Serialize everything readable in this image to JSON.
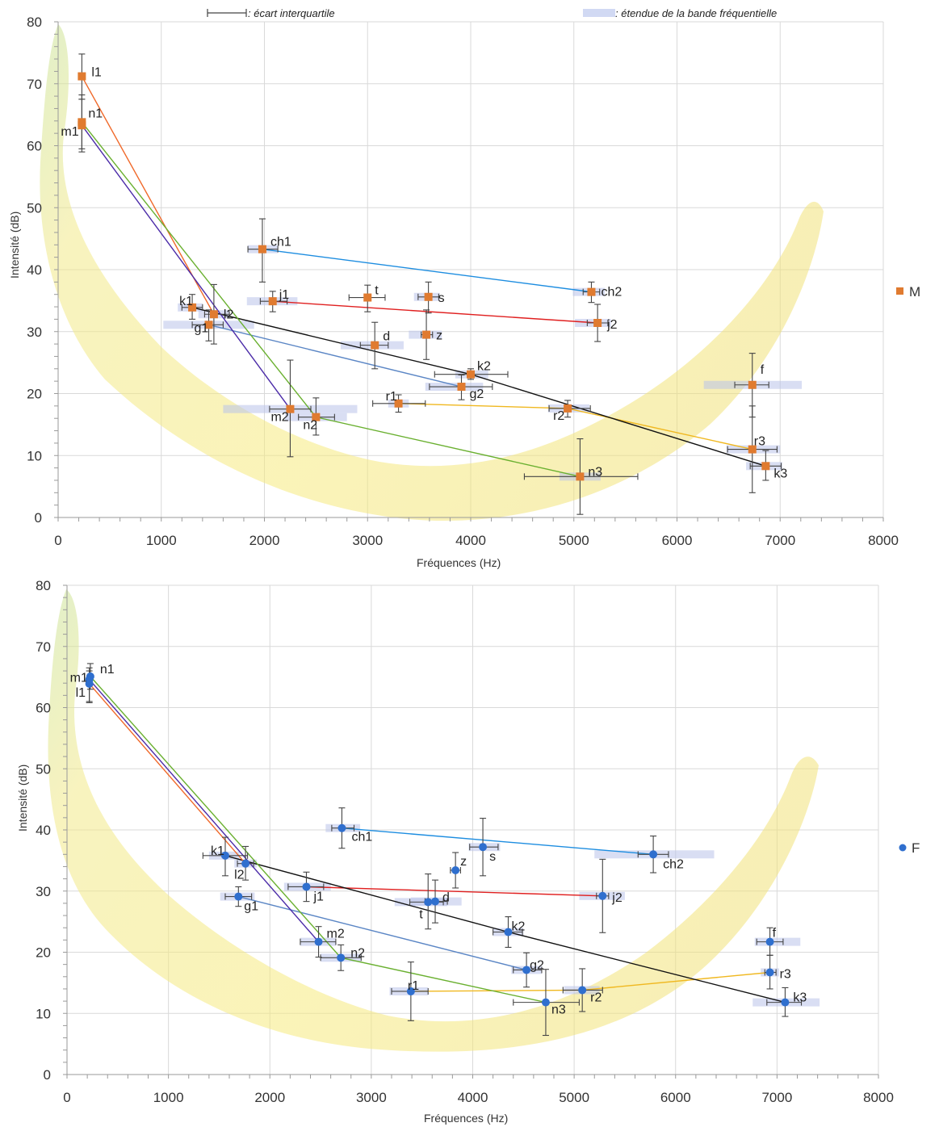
{
  "header_notes": {
    "iqr_note": ": écart interquartile",
    "band_note": ": étendue de la bande fréquentielle"
  },
  "chart_data": [
    {
      "type": "scatter",
      "xlabel": "Fréquences (Hz)",
      "ylabel": "Intensité (dB)",
      "xlim": [
        0,
        8000
      ],
      "ylim": [
        0,
        80
      ],
      "xticks": [
        0,
        1000,
        2000,
        3000,
        4000,
        5000,
        6000,
        7000,
        8000
      ],
      "yticks": [
        0,
        10,
        20,
        30,
        40,
        50,
        60,
        70,
        80
      ],
      "grid": true,
      "legend_position": "right",
      "legend": [
        {
          "name": "M",
          "color": "#e07b30"
        }
      ],
      "marker": "square",
      "marker_color": "#e07b30",
      "points": [
        {
          "label": "l1",
          "x": 230,
          "y": 71.2,
          "yerr": [
            67.5,
            74.8
          ],
          "xerr": null,
          "band": null
        },
        {
          "label": "n1",
          "x": 230,
          "y": 63.8,
          "yerr": [
            59.5,
            68.2
          ],
          "xerr": null,
          "band": null
        },
        {
          "label": "m1",
          "x": 230,
          "y": 63.3,
          "yerr": [
            59.0,
            67.5
          ],
          "xerr": null,
          "band": null
        },
        {
          "label": "ch1",
          "x": 1980,
          "y": 43.3,
          "yerr": [
            38.0,
            48.2
          ],
          "xerr": [
            1840,
            2130
          ],
          "band": [
            1840,
            2130
          ]
        },
        {
          "label": "k1",
          "x": 1300,
          "y": 33.9,
          "yerr": [
            32.0,
            36.0
          ],
          "xerr": [
            1200,
            1400
          ],
          "band": [
            1160,
            1400
          ]
        },
        {
          "label": "l2",
          "x": 1510,
          "y": 32.8,
          "yerr": [
            28.0,
            37.6
          ],
          "xerr": [
            1420,
            1660
          ],
          "band": [
            1360,
            1660
          ]
        },
        {
          "label": "g1",
          "x": 1460,
          "y": 31.1,
          "yerr": [
            28.5,
            33.5
          ],
          "xerr": [
            1300,
            1600
          ],
          "band": [
            1020,
            1900
          ]
        },
        {
          "label": "j1",
          "x": 2080,
          "y": 34.9,
          "yerr": [
            33.2,
            36.5
          ],
          "xerr": [
            1960,
            2220
          ],
          "band": [
            1830,
            2320
          ]
        },
        {
          "label": "t",
          "x": 3000,
          "y": 35.5,
          "yerr": [
            33.2,
            37.5
          ],
          "xerr": [
            2820,
            3170
          ],
          "band": null
        },
        {
          "label": "s",
          "x": 3590,
          "y": 35.6,
          "yerr": [
            33.0,
            38.0
          ],
          "xerr": [
            3490,
            3690
          ],
          "band": [
            3450,
            3700
          ]
        },
        {
          "label": "z",
          "x": 3570,
          "y": 29.5,
          "yerr": [
            25.5,
            33.5
          ],
          "xerr": [
            3520,
            3630
          ],
          "band": [
            3400,
            3720
          ]
        },
        {
          "label": "d",
          "x": 3070,
          "y": 27.8,
          "yerr": [
            24.0,
            31.5
          ],
          "xerr": [
            2930,
            3200
          ],
          "band": [
            2740,
            3350
          ]
        },
        {
          "label": "k2",
          "x": 4000,
          "y": 23.1,
          "yerr": [
            22.3,
            24.0
          ],
          "xerr": [
            3650,
            4360
          ],
          "band": [
            3850,
            4170
          ]
        },
        {
          "label": "g2",
          "x": 3910,
          "y": 21.1,
          "yerr": [
            19.0,
            23.0
          ],
          "xerr": [
            3600,
            4210
          ],
          "band": [
            3560,
            4120
          ]
        },
        {
          "label": "r1",
          "x": 3300,
          "y": 18.4,
          "yerr": [
            17.0,
            19.8
          ],
          "xerr": [
            3050,
            3560
          ],
          "band": [
            3200,
            3400
          ]
        },
        {
          "label": "r2",
          "x": 4940,
          "y": 17.6,
          "yerr": [
            16.2,
            18.9
          ],
          "xerr": [
            4760,
            5160
          ],
          "band": [
            4750,
            5150
          ]
        },
        {
          "label": "m2",
          "x": 2250,
          "y": 17.5,
          "yerr": [
            9.8,
            25.4
          ],
          "xerr": [
            2050,
            2450
          ],
          "band": [
            1600,
            2900
          ]
        },
        {
          "label": "n2",
          "x": 2500,
          "y": 16.2,
          "yerr": [
            13.3,
            19.3
          ],
          "xerr": [
            2330,
            2680
          ],
          "band": [
            2200,
            2800
          ]
        },
        {
          "label": "f",
          "x": 6730,
          "y": 21.4,
          "yerr": [
            16.2,
            26.5
          ],
          "xerr": [
            6560,
            6890
          ],
          "band": [
            6260,
            7210
          ]
        },
        {
          "label": "r3",
          "x": 6730,
          "y": 11.0,
          "yerr": [
            4.0,
            18.0
          ],
          "xerr": [
            6490,
            6970
          ],
          "band": [
            6480,
            7000
          ]
        },
        {
          "label": "k3",
          "x": 6860,
          "y": 8.3,
          "yerr": [
            6.0,
            10.8
          ],
          "xerr": [
            6710,
            7010
          ],
          "band": [
            6670,
            7020
          ]
        },
        {
          "label": "n3",
          "x": 5060,
          "y": 6.6,
          "yerr": [
            0.5,
            12.7
          ],
          "xerr": [
            4520,
            5620
          ],
          "band": [
            4860,
            5260
          ]
        },
        {
          "label": "ch2",
          "x": 5170,
          "y": 36.4,
          "yerr": [
            34.7,
            38.0
          ],
          "xerr": [
            5090,
            5250
          ],
          "band": [
            4990,
            5300
          ]
        },
        {
          "label": "j2",
          "x": 5230,
          "y": 31.4,
          "yerr": [
            28.4,
            34.4
          ],
          "xerr": [
            5130,
            5330
          ],
          "band": [
            5010,
            5360
          ]
        }
      ],
      "series": [
        {
          "color": "#1d8de0",
          "points": [
            "ch1",
            "ch2"
          ]
        },
        {
          "color": "#e02020",
          "points": [
            "j1",
            "j2"
          ]
        },
        {
          "color": "#f0b820",
          "points": [
            "r1",
            "r2",
            "r3"
          ]
        },
        {
          "color": "#111111",
          "points": [
            "k1",
            "k2",
            "k3"
          ]
        },
        {
          "color": "#5b86c5",
          "points": [
            "g1",
            "g2"
          ]
        },
        {
          "color": "#f0692a",
          "points": [
            "l1",
            "l2"
          ]
        },
        {
          "color": "#6ab030",
          "points": [
            "n1",
            "n2",
            "n3"
          ]
        },
        {
          "color": "#4b2ba8",
          "points": [
            "m1",
            "m2"
          ]
        }
      ]
    },
    {
      "type": "scatter",
      "xlabel": "Fréquences (Hz)",
      "ylabel": "Intensité (dB)",
      "xlim": [
        0,
        8000
      ],
      "ylim": [
        0,
        80
      ],
      "xticks": [
        0,
        1000,
        2000,
        3000,
        4000,
        5000,
        6000,
        7000,
        8000
      ],
      "yticks": [
        0,
        10,
        20,
        30,
        40,
        50,
        60,
        70,
        80
      ],
      "grid": true,
      "legend_position": "right",
      "legend": [
        {
          "name": "F",
          "color": "#2f6fce"
        }
      ],
      "marker": "circle",
      "marker_color": "#2f6fce",
      "points": [
        {
          "label": "n1",
          "x": 230,
          "y": 65.1,
          "yerr": [
            63.0,
            67.2
          ],
          "xerr": null,
          "band": null
        },
        {
          "label": "m1",
          "x": 220,
          "y": 64.6,
          "yerr": [
            61.0,
            66.5
          ],
          "xerr": null,
          "band": null
        },
        {
          "label": "l1",
          "x": 220,
          "y": 63.9,
          "yerr": [
            60.8,
            66.0
          ],
          "xerr": null,
          "band": null
        },
        {
          "label": "ch1",
          "x": 2710,
          "y": 40.3,
          "yerr": [
            37.0,
            43.6
          ],
          "xerr": [
            2610,
            2830
          ],
          "band": [
            2550,
            2890
          ]
        },
        {
          "label": "k1",
          "x": 1560,
          "y": 35.8,
          "yerr": [
            32.5,
            38.8
          ],
          "xerr": [
            1340,
            1780
          ],
          "band": [
            1400,
            1700
          ]
        },
        {
          "label": "l2",
          "x": 1760,
          "y": 34.5,
          "yerr": [
            31.8,
            37.3
          ],
          "xerr": [
            1680,
            1840
          ],
          "band": [
            1650,
            1870
          ]
        },
        {
          "label": "s",
          "x": 4100,
          "y": 37.2,
          "yerr": [
            32.5,
            41.9
          ],
          "xerr": [
            3970,
            4250
          ],
          "band": [
            3960,
            4270
          ]
        },
        {
          "label": "z",
          "x": 3830,
          "y": 33.4,
          "yerr": [
            30.5,
            36.3
          ],
          "xerr": [
            3780,
            3880
          ],
          "band": null
        },
        {
          "label": "j1",
          "x": 2360,
          "y": 30.7,
          "yerr": [
            28.3,
            33.1
          ],
          "xerr": [
            2180,
            2530
          ],
          "band": [
            2140,
            2600
          ]
        },
        {
          "label": "g1",
          "x": 1690,
          "y": 29.1,
          "yerr": [
            27.5,
            30.7
          ],
          "xerr": [
            1560,
            1820
          ],
          "band": [
            1510,
            1850
          ]
        },
        {
          "label": "d",
          "x": 3630,
          "y": 28.3,
          "yerr": [
            24.8,
            31.8
          ],
          "xerr": [
            3530,
            3750
          ],
          "band": [
            3390,
            3890
          ]
        },
        {
          "label": "t",
          "x": 3560,
          "y": 28.2,
          "yerr": [
            23.8,
            32.8
          ],
          "xerr": [
            3380,
            3710
          ],
          "band": [
            3230,
            3750
          ]
        },
        {
          "label": "k2",
          "x": 4350,
          "y": 23.3,
          "yerr": [
            20.8,
            25.8
          ],
          "xerr": [
            4200,
            4490
          ],
          "band": [
            4200,
            4500
          ]
        },
        {
          "label": "m2",
          "x": 2480,
          "y": 21.7,
          "yerr": [
            19.2,
            24.2
          ],
          "xerr": [
            2300,
            2650
          ],
          "band": [
            2300,
            2650
          ]
        },
        {
          "label": "n2",
          "x": 2700,
          "y": 19.1,
          "yerr": [
            17.0,
            21.2
          ],
          "xerr": [
            2500,
            2900
          ],
          "band": [
            2500,
            2900
          ]
        },
        {
          "label": "g2",
          "x": 4530,
          "y": 17.1,
          "yerr": [
            14.3,
            19.9
          ],
          "xerr": [
            4400,
            4680
          ],
          "band": [
            4380,
            4680
          ]
        },
        {
          "label": "r1",
          "x": 3390,
          "y": 13.6,
          "yerr": [
            8.8,
            18.4
          ],
          "xerr": [
            3200,
            3560
          ],
          "band": [
            3180,
            3560
          ]
        },
        {
          "label": "n3",
          "x": 4720,
          "y": 11.8,
          "yerr": [
            6.4,
            17.2
          ],
          "xerr": [
            4400,
            5050
          ],
          "band": null
        },
        {
          "label": "r2",
          "x": 5080,
          "y": 13.8,
          "yerr": [
            10.3,
            17.3
          ],
          "xerr": [
            4890,
            5280
          ],
          "band": [
            4900,
            5250
          ]
        },
        {
          "label": "ch2",
          "x": 5780,
          "y": 36.0,
          "yerr": [
            33.0,
            39.0
          ],
          "xerr": [
            5630,
            5930
          ],
          "band": [
            5200,
            6380
          ]
        },
        {
          "label": "j2",
          "x": 5280,
          "y": 29.2,
          "yerr": [
            23.2,
            35.2
          ],
          "xerr": [
            5220,
            5340
          ],
          "band": [
            5050,
            5500
          ]
        },
        {
          "label": "f",
          "x": 6930,
          "y": 21.7,
          "yerr": [
            19.5,
            24.0
          ],
          "xerr": [
            6800,
            7060
          ],
          "band": [
            6780,
            7230
          ]
        },
        {
          "label": "r3",
          "x": 6930,
          "y": 16.7,
          "yerr": [
            14.0,
            19.5
          ],
          "xerr": [
            6880,
            6990
          ],
          "band": [
            6840,
            7020
          ]
        },
        {
          "label": "k3",
          "x": 7080,
          "y": 11.8,
          "yerr": [
            9.5,
            14.2
          ],
          "xerr": [
            6900,
            7240
          ],
          "band": [
            6760,
            7420
          ]
        }
      ],
      "series": [
        {
          "color": "#1d8de0",
          "points": [
            "ch1",
            "ch2"
          ]
        },
        {
          "color": "#e02020",
          "points": [
            "j1",
            "j2"
          ]
        },
        {
          "color": "#f0b820",
          "points": [
            "r1",
            "r2",
            "r3"
          ]
        },
        {
          "color": "#111111",
          "points": [
            "k1",
            "k2",
            "k3"
          ]
        },
        {
          "color": "#5b86c5",
          "points": [
            "g1",
            "g2"
          ]
        },
        {
          "color": "#f0692a",
          "points": [
            "l1",
            "l2"
          ]
        },
        {
          "color": "#6ab030",
          "points": [
            "n1",
            "n2",
            "n3"
          ]
        },
        {
          "color": "#4b2ba8",
          "points": [
            "m1",
            "m2"
          ]
        }
      ]
    }
  ]
}
